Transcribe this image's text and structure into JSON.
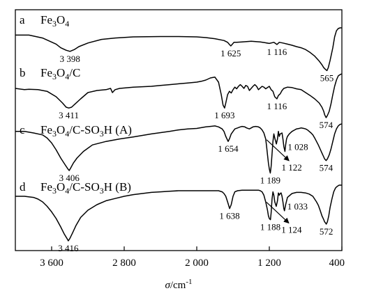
{
  "chart_data": {
    "type": "line",
    "title": "",
    "xlabel": "σ/cm⁻¹",
    "xlabel_parts": {
      "symbol": "σ",
      "unit": "/cm",
      "exp": "-1"
    },
    "ylabel": "",
    "xlim": [
      4000,
      400
    ],
    "x_reversed": true,
    "xticks": [
      3600,
      2800,
      2000,
      1200,
      400
    ],
    "xtick_labels": [
      "3 600",
      "2 800",
      "2 000",
      "1 200",
      "400"
    ],
    "grid": false,
    "legend": "none",
    "series": [
      {
        "name": "a  Fe3O4",
        "letter": "a",
        "label_parts": [
          [
            "Fe",
            ""
          ],
          [
            "3",
            "sub"
          ],
          [
            "O",
            ""
          ],
          [
            "4",
            "sub"
          ]
        ],
        "x": [
          4000,
          3850,
          3700,
          3550,
          3500,
          3440,
          3398,
          3350,
          3300,
          3200,
          3050,
          2900,
          2700,
          2400,
          2200,
          2000,
          1900,
          1800,
          1700,
          1660,
          1640,
          1625,
          1610,
          1590,
          1560,
          1500,
          1450,
          1400,
          1350,
          1300,
          1250,
          1200,
          1150,
          1116,
          1090,
          1050,
          1000,
          950,
          900,
          850,
          800,
          750,
          700,
          650,
          620,
          600,
          580,
          565,
          550,
          530,
          500,
          480,
          460,
          440,
          420,
          400
        ],
        "y": [
          0.2,
          0.2,
          0.28,
          0.45,
          0.55,
          0.62,
          0.65,
          0.6,
          0.52,
          0.42,
          0.32,
          0.28,
          0.25,
          0.24,
          0.24,
          0.25,
          0.27,
          0.3,
          0.35,
          0.4,
          0.46,
          0.5,
          0.46,
          0.4,
          0.4,
          0.39,
          0.38,
          0.37,
          0.38,
          0.39,
          0.41,
          0.43,
          0.4,
          0.46,
          0.4,
          0.42,
          0.45,
          0.48,
          0.52,
          0.55,
          0.6,
          0.68,
          0.78,
          0.92,
          1.02,
          1.1,
          1.15,
          1.18,
          1.1,
          0.9,
          0.55,
          0.25,
          0.08,
          0.02,
          0.0,
          0.0
        ]
      },
      {
        "name": "b  Fe3O4/C",
        "letter": "b",
        "label_parts": [
          [
            "Fe",
            ""
          ],
          [
            "3",
            "sub"
          ],
          [
            "O",
            ""
          ],
          [
            "4",
            "sub"
          ],
          [
            "/C",
            ""
          ]
        ],
        "x": [
          4000,
          3900,
          3850,
          3750,
          3650,
          3550,
          3480,
          3440,
          3411,
          3380,
          3340,
          3280,
          3200,
          3100,
          3000,
          2950,
          2930,
          2900,
          2850,
          2700,
          2500,
          2400,
          2300,
          2200,
          2100,
          2000,
          1950,
          1900,
          1850,
          1800,
          1760,
          1730,
          1710,
          1693,
          1680,
          1660,
          1640,
          1620,
          1600,
          1580,
          1560,
          1540,
          1520,
          1500,
          1480,
          1460,
          1440,
          1420,
          1400,
          1380,
          1360,
          1340,
          1320,
          1300,
          1280,
          1260,
          1240,
          1220,
          1200,
          1180,
          1160,
          1140,
          1116,
          1100,
          1080,
          1060,
          1040,
          1000,
          950,
          900,
          850,
          800,
          750,
          700,
          650,
          620,
          600,
          590,
          574,
          560,
          540,
          520,
          500,
          480,
          460,
          440,
          420,
          400
        ],
        "y": [
          0.35,
          0.38,
          0.37,
          0.38,
          0.42,
          0.55,
          0.7,
          0.8,
          0.82,
          0.8,
          0.72,
          0.6,
          0.45,
          0.4,
          0.38,
          0.35,
          0.45,
          0.38,
          0.35,
          0.32,
          0.3,
          0.28,
          0.26,
          0.24,
          0.22,
          0.2,
          0.18,
          0.15,
          0.1,
          0.08,
          0.2,
          0.5,
          0.75,
          0.82,
          0.7,
          0.5,
          0.42,
          0.46,
          0.38,
          0.32,
          0.36,
          0.3,
          0.26,
          0.3,
          0.35,
          0.28,
          0.3,
          0.4,
          0.35,
          0.3,
          0.26,
          0.3,
          0.38,
          0.34,
          0.3,
          0.32,
          0.36,
          0.33,
          0.3,
          0.38,
          0.42,
          0.55,
          0.6,
          0.52,
          0.48,
          0.4,
          0.35,
          0.32,
          0.33,
          0.36,
          0.38,
          0.45,
          0.52,
          0.6,
          0.7,
          0.8,
          0.9,
          0.98,
          1.05,
          1.0,
          0.9,
          0.72,
          0.5,
          0.3,
          0.15,
          0.05,
          0.02,
          0.0
        ]
      },
      {
        "name": "c  Fe3O4/C-SO3H (A)",
        "letter": "c",
        "label_parts": [
          [
            "Fe",
            ""
          ],
          [
            "3",
            "sub"
          ],
          [
            "O",
            ""
          ],
          [
            "4",
            "sub"
          ],
          [
            "/C-SO",
            ""
          ],
          [
            "3",
            "sub"
          ],
          [
            "H (A)",
            ""
          ]
        ],
        "x": [
          4000,
          3900,
          3800,
          3700,
          3650,
          3600,
          3550,
          3500,
          3450,
          3420,
          3406,
          3390,
          3360,
          3320,
          3250,
          3150,
          3000,
          2850,
          2700,
          2500,
          2300,
          2200,
          2100,
          2000,
          1900,
          1850,
          1800,
          1760,
          1720,
          1700,
          1680,
          1654,
          1640,
          1620,
          1600,
          1580,
          1550,
          1520,
          1500,
          1470,
          1450,
          1420,
          1400,
          1380,
          1350,
          1320,
          1300,
          1280,
          1260,
          1240,
          1230,
          1220,
          1210,
          1200,
          1189,
          1180,
          1170,
          1160,
          1150,
          1140,
          1122,
          1110,
          1100,
          1090,
          1080,
          1060,
          1050,
          1040,
          1028,
          1020,
          1010,
          1000,
          980,
          950,
          920,
          900,
          870,
          850,
          820,
          800,
          780,
          760,
          740,
          720,
          700,
          680,
          660,
          640,
          620,
          600,
          590,
          580,
          574,
          560,
          540,
          520,
          500,
          480,
          460,
          440,
          420,
          400
        ],
        "y": [
          0.15,
          0.15,
          0.18,
          0.22,
          0.28,
          0.38,
          0.52,
          0.68,
          0.82,
          0.9,
          0.93,
          0.88,
          0.78,
          0.68,
          0.55,
          0.42,
          0.35,
          0.3,
          0.26,
          0.2,
          0.15,
          0.12,
          0.1,
          0.09,
          0.06,
          0.05,
          0.04,
          0.06,
          0.1,
          0.15,
          0.25,
          0.35,
          0.3,
          0.2,
          0.15,
          0.1,
          0.08,
          0.06,
          0.05,
          0.06,
          0.08,
          0.1,
          0.08,
          0.06,
          0.05,
          0.06,
          0.08,
          0.12,
          0.18,
          0.3,
          0.45,
          0.62,
          0.78,
          0.9,
          0.98,
          0.85,
          0.6,
          0.35,
          0.2,
          0.28,
          0.4,
          0.3,
          0.15,
          0.25,
          0.2,
          0.18,
          0.3,
          0.45,
          0.55,
          0.42,
          0.3,
          0.25,
          0.2,
          0.15,
          0.12,
          0.1,
          0.09,
          0.08,
          0.09,
          0.1,
          0.12,
          0.15,
          0.18,
          0.22,
          0.28,
          0.35,
          0.42,
          0.5,
          0.58,
          0.66,
          0.7,
          0.72,
          0.73,
          0.7,
          0.62,
          0.5,
          0.35,
          0.2,
          0.1,
          0.04,
          0.01,
          0.0
        ]
      },
      {
        "name": "d  Fe3O4/C-SO3H (B)",
        "letter": "d",
        "label_parts": [
          [
            "Fe",
            ""
          ],
          [
            "3",
            "sub"
          ],
          [
            "O",
            ""
          ],
          [
            "4",
            "sub"
          ],
          [
            "/C-SO",
            ""
          ],
          [
            "3",
            "sub"
          ],
          [
            "H (B)",
            ""
          ]
        ],
        "x": [
          4000,
          3900,
          3800,
          3750,
          3700,
          3650,
          3600,
          3550,
          3500,
          3460,
          3430,
          3416,
          3400,
          3370,
          3330,
          3280,
          3200,
          3100,
          3000,
          2900,
          2800,
          2700,
          2600,
          2500,
          2400,
          2300,
          2200,
          2100,
          2000,
          1950,
          1900,
          1850,
          1800,
          1760,
          1720,
          1700,
          1680,
          1660,
          1638,
          1620,
          1600,
          1580,
          1550,
          1500,
          1450,
          1400,
          1350,
          1320,
          1300,
          1280,
          1260,
          1240,
          1220,
          1210,
          1200,
          1188,
          1180,
          1170,
          1160,
          1150,
          1140,
          1124,
          1110,
          1100,
          1090,
          1080,
          1070,
          1060,
          1050,
          1040,
          1033,
          1020,
          1000,
          950,
          900,
          850,
          800,
          760,
          720,
          700,
          680,
          660,
          640,
          620,
          600,
          590,
          580,
          572,
          560,
          545,
          530,
          510,
          490,
          470,
          450,
          430,
          400
        ],
        "y": [
          0.2,
          0.2,
          0.22,
          0.25,
          0.3,
          0.38,
          0.48,
          0.6,
          0.75,
          0.88,
          0.96,
          1.0,
          0.96,
          0.86,
          0.72,
          0.58,
          0.45,
          0.35,
          0.28,
          0.24,
          0.2,
          0.17,
          0.15,
          0.13,
          0.12,
          0.11,
          0.1,
          0.1,
          0.1,
          0.1,
          0.1,
          0.1,
          0.1,
          0.1,
          0.12,
          0.15,
          0.2,
          0.3,
          0.42,
          0.35,
          0.2,
          0.12,
          0.1,
          0.09,
          0.09,
          0.09,
          0.09,
          0.09,
          0.1,
          0.12,
          0.18,
          0.3,
          0.45,
          0.55,
          0.6,
          0.62,
          0.5,
          0.25,
          0.12,
          0.18,
          0.3,
          0.38,
          0.28,
          0.14,
          0.18,
          0.15,
          0.14,
          0.2,
          0.3,
          0.42,
          0.46,
          0.35,
          0.22,
          0.15,
          0.13,
          0.13,
          0.14,
          0.16,
          0.2,
          0.25,
          0.3,
          0.36,
          0.45,
          0.55,
          0.62,
          0.66,
          0.68,
          0.7,
          0.66,
          0.55,
          0.4,
          0.25,
          0.12,
          0.05,
          0.02,
          0.0,
          0.0
        ]
      }
    ],
    "annotations": [
      {
        "series": 0,
        "text": "3 398",
        "x": 3398
      },
      {
        "series": 0,
        "text": "1 625",
        "x": 1625
      },
      {
        "series": 0,
        "text": "1 116",
        "x": 1116
      },
      {
        "series": 0,
        "text": "565",
        "x": 565
      },
      {
        "series": 1,
        "text": "3 411",
        "x": 3411
      },
      {
        "series": 1,
        "text": "1 693",
        "x": 1693
      },
      {
        "series": 1,
        "text": "1 116",
        "x": 1116
      },
      {
        "series": 1,
        "text": "574",
        "x": 574
      },
      {
        "series": 2,
        "text": "3 406",
        "x": 3406
      },
      {
        "series": 2,
        "text": "1 654",
        "x": 1654
      },
      {
        "series": 2,
        "text": "1 189",
        "x": 1189
      },
      {
        "series": 2,
        "text": "1 028",
        "x": 1028
      },
      {
        "series": 2,
        "text": "1 122",
        "x": 1122,
        "arrow": true
      },
      {
        "series": 2,
        "text": "574",
        "x": 574
      },
      {
        "series": 3,
        "text": "3 416",
        "x": 3416
      },
      {
        "series": 3,
        "text": "1 638",
        "x": 1638
      },
      {
        "series": 3,
        "text": "1 188",
        "x": 1188
      },
      {
        "series": 3,
        "text": "1 033",
        "x": 1033
      },
      {
        "series": 3,
        "text": "1 124",
        "x": 1124,
        "arrow": true
      },
      {
        "series": 3,
        "text": "572",
        "x": 572
      }
    ]
  }
}
